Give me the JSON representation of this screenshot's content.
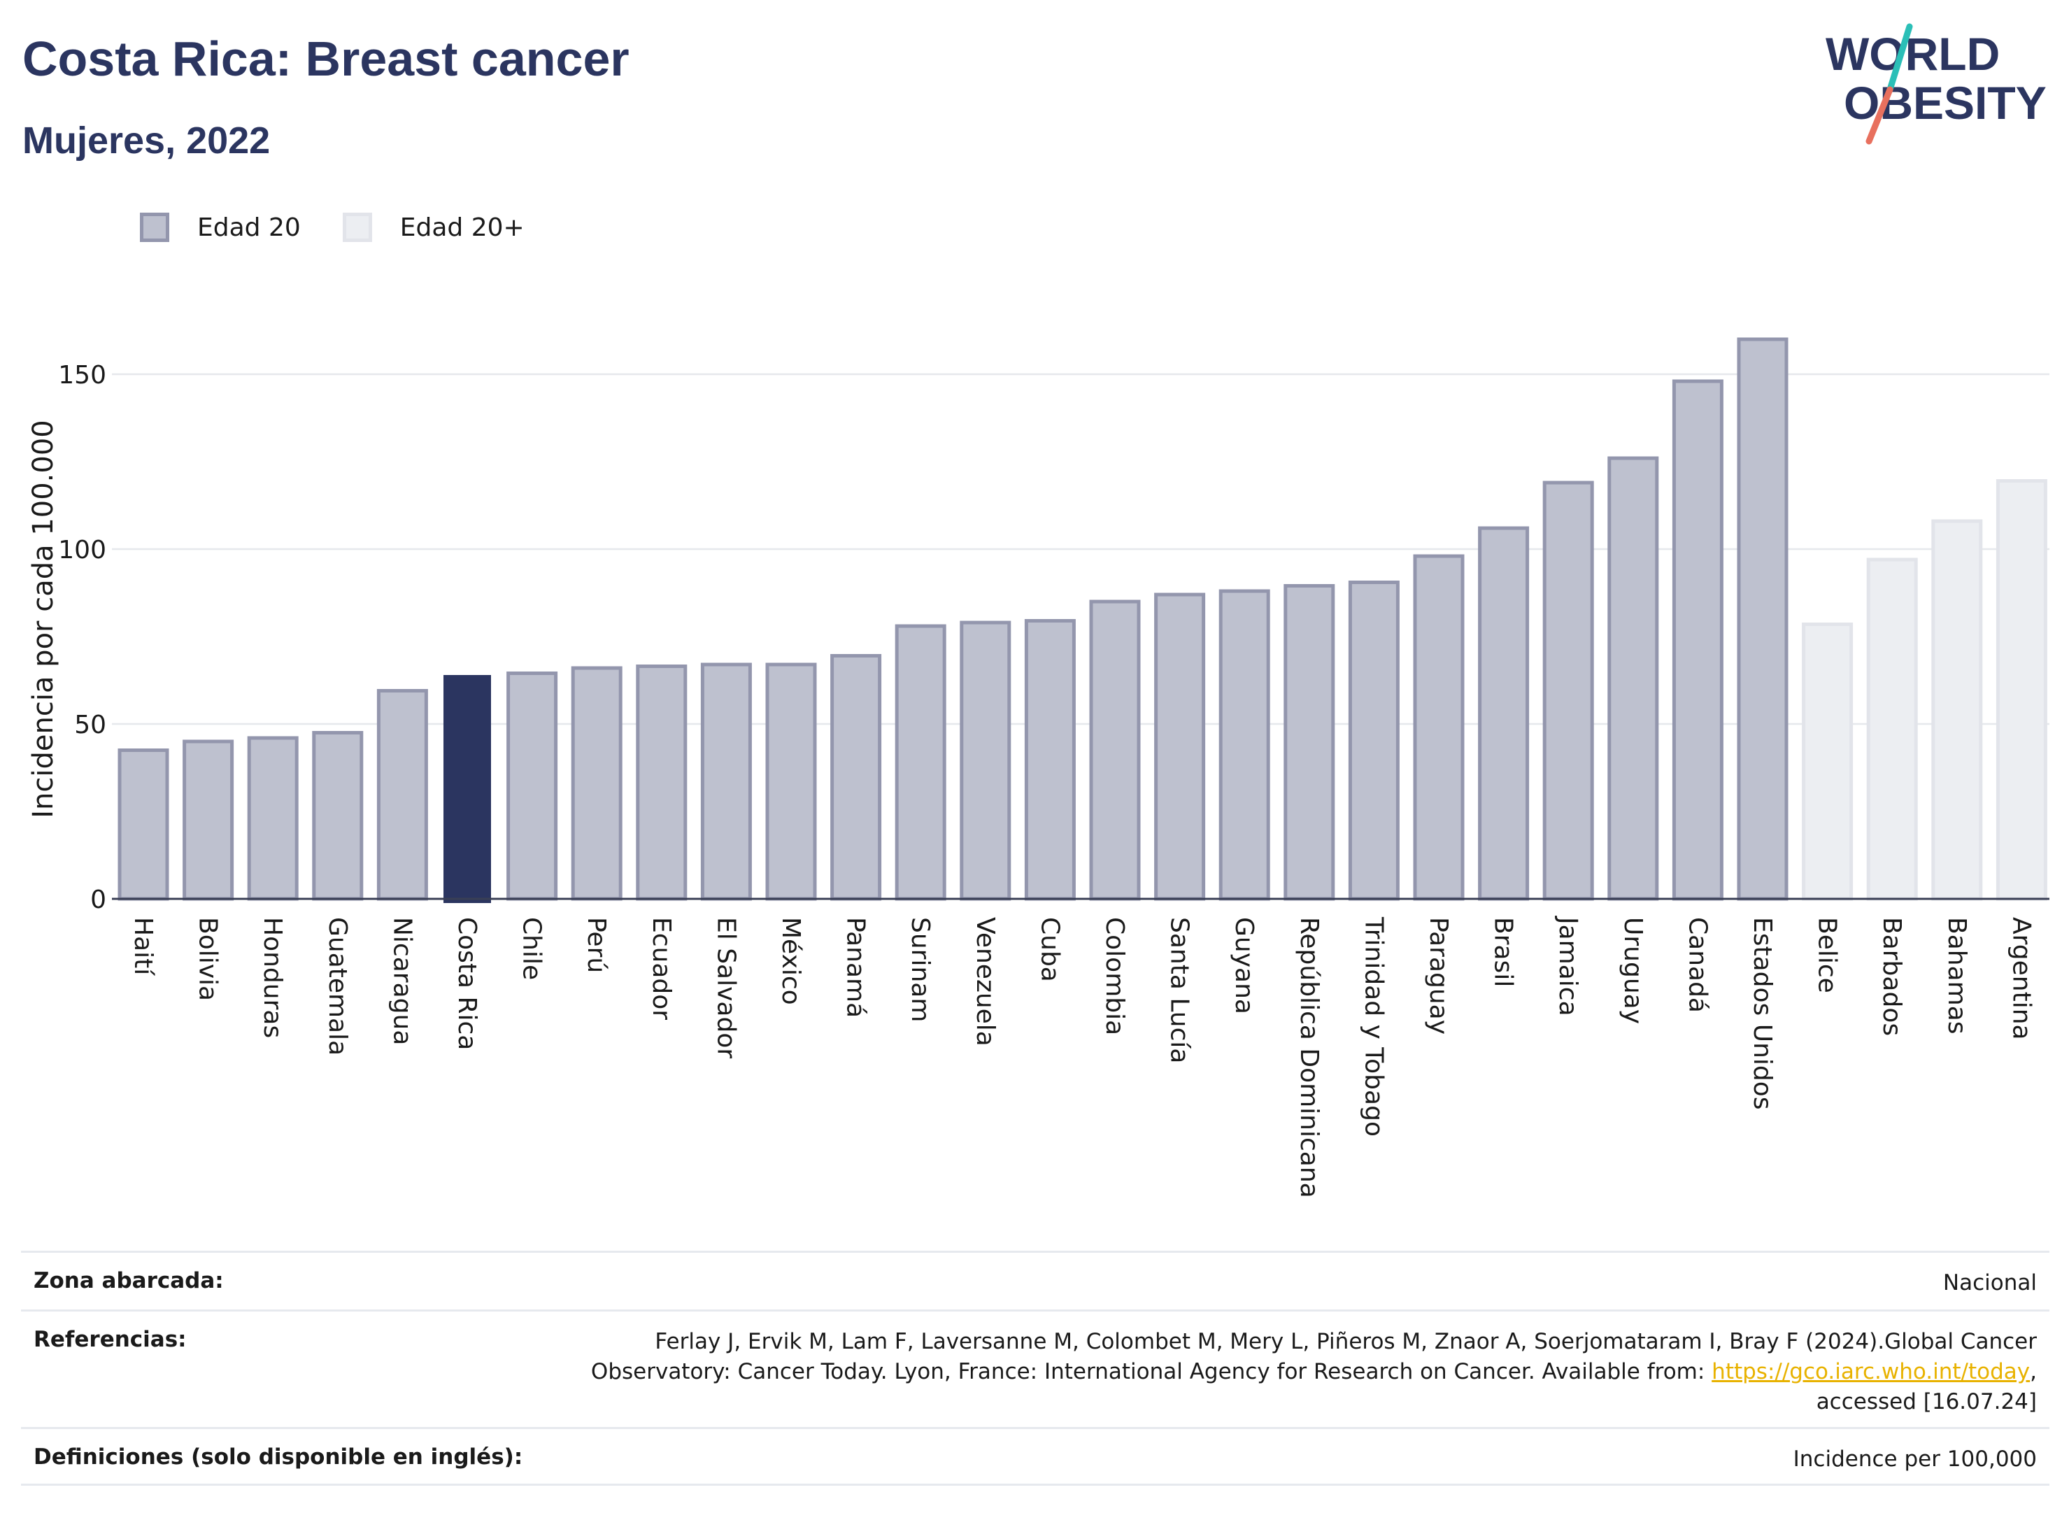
{
  "header": {
    "title": "Costa Rica: Breast cancer",
    "subtitle": "Mujeres, 2022"
  },
  "logo": {
    "line1": "WORLD",
    "line2": "OBESITY",
    "brand_color": "#2b3560",
    "accent_teal": "#2bbfb7",
    "accent_coral": "#e8705e"
  },
  "legend": {
    "items": [
      {
        "label": "Edad 20",
        "color": "#bec1cf",
        "border": "#9396ad"
      },
      {
        "label": "Edad 20+",
        "color": "#eceef2",
        "border": "#e2e4ea"
      }
    ]
  },
  "chart_data": {
    "type": "bar",
    "ylabel": "Incidencia por cada 100.000",
    "xlabel": "",
    "ylim": [
      0,
      170
    ],
    "yticks": [
      0,
      50,
      100,
      150
    ],
    "grid": true,
    "legend_position": "top-left",
    "highlight": "Costa Rica",
    "highlight_color": "#2b3560",
    "categories": [
      "Haití",
      "Bolivia",
      "Honduras",
      "Guatemala",
      "Nicaragua",
      "Costa Rica",
      "Chile",
      "Perú",
      "Ecuador",
      "El Salvador",
      "México",
      "Panamá",
      "Surinam",
      "Venezuela",
      "Cuba",
      "Colombia",
      "Santa Lucía",
      "Guyana",
      "República Dominicana",
      "Trinidad y Tobago",
      "Paraguay",
      "Brasil",
      "Jamaica",
      "Uruguay",
      "Canadá",
      "Estados Unidos",
      "Belice",
      "Barbados",
      "Bahamas",
      "Argentina"
    ],
    "values": [
      42.5,
      45,
      46,
      47.5,
      59.5,
      64,
      64.5,
      66,
      66.5,
      67,
      67,
      69.5,
      78,
      79,
      79.5,
      85,
      87,
      88,
      89.5,
      90.5,
      98,
      106,
      119,
      126,
      148,
      160,
      78.5,
      97,
      108,
      119.5
    ],
    "series_group": [
      "Edad 20",
      "Edad 20",
      "Edad 20",
      "Edad 20",
      "Edad 20",
      "Edad 20",
      "Edad 20",
      "Edad 20",
      "Edad 20",
      "Edad 20",
      "Edad 20",
      "Edad 20",
      "Edad 20",
      "Edad 20",
      "Edad 20",
      "Edad 20",
      "Edad 20",
      "Edad 20",
      "Edad 20",
      "Edad 20",
      "Edad 20",
      "Edad 20",
      "Edad 20",
      "Edad 20",
      "Edad 20",
      "Edad 20",
      "Edad 20+",
      "Edad 20+",
      "Edad 20+",
      "Edad 20+"
    ]
  },
  "info": {
    "zona_label": "Zona abarcada:",
    "zona_value": "Nacional",
    "ref_label": "Referencias:",
    "ref_text_1": "Ferlay J, Ervik M, Lam F, Laversanne M, Colombet M, Mery L, Piñeros M, Znaor A, Soerjomataram I, Bray F (2024).Global Cancer",
    "ref_text_2": "Observatory: Cancer Today. Lyon, France: International Agency for Research on Cancer. Available from: ",
    "ref_link": "https://gco.iarc.who.int/today",
    "ref_text_3": ",",
    "ref_text_4": "accessed [16.07.24]",
    "def_label": "Definiciones (solo disponible en inglés):",
    "def_value": "Incidence per 100,000"
  }
}
